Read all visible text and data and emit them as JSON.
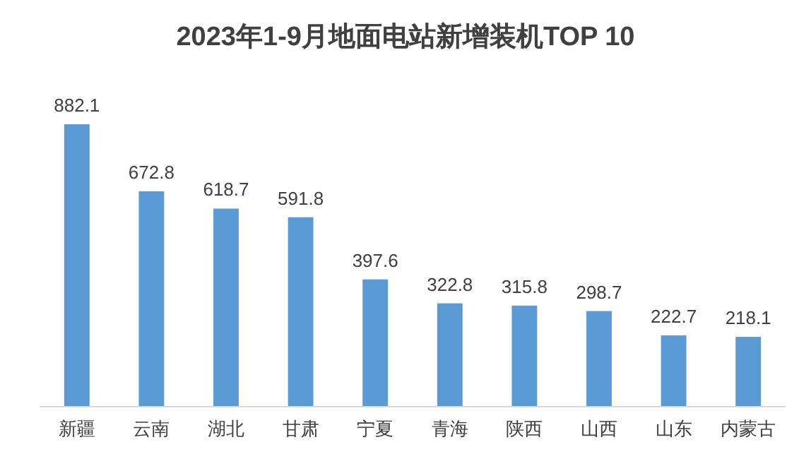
{
  "chart_data": {
    "type": "bar",
    "title": "2023年1-9月地面电站新增装机TOP 10",
    "categories": [
      "新疆",
      "云南",
      "湖北",
      "甘肃",
      "宁夏",
      "青海",
      "陕西",
      "山西",
      "山东",
      "内蒙古"
    ],
    "values": [
      882.1,
      672.8,
      618.7,
      591.8,
      397.6,
      322.8,
      315.8,
      298.7,
      222.7,
      218.1
    ],
    "color": "#5b9bd5",
    "data_labels": true
  }
}
